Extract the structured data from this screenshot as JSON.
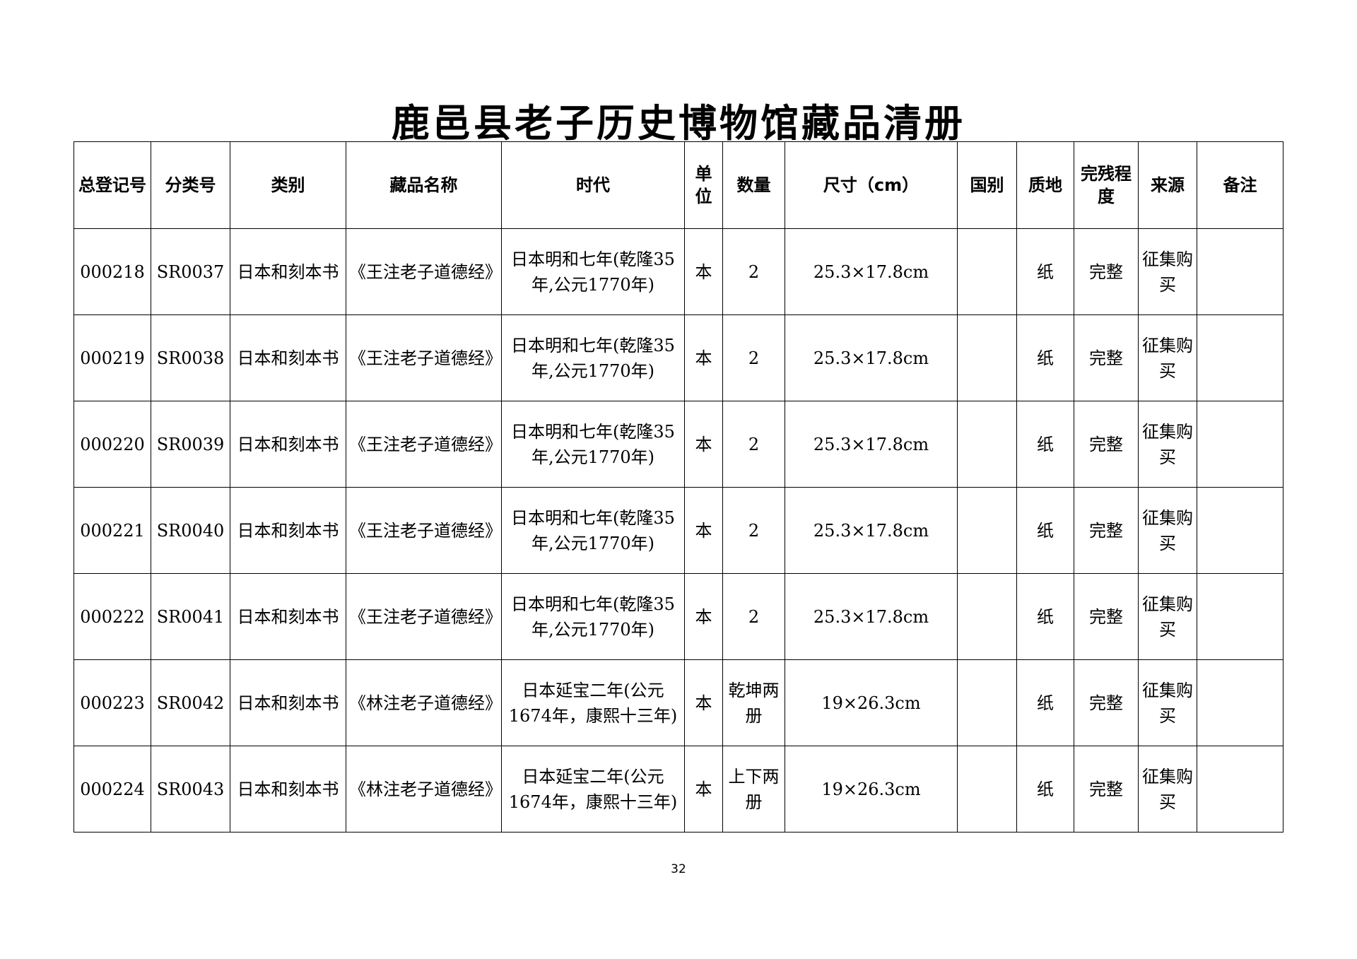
{
  "title": "鹿邑县老子历史博物馆藏品清册",
  "headers": [
    "总登记号",
    "分类号",
    "类别",
    "藏品名称",
    "时代",
    "单位",
    "数量",
    "尺寸（cm）",
    "国别",
    "质地",
    "完残程度",
    "来源",
    "备注"
  ],
  "rows": [
    [
      "000218",
      "SR0037",
      "日本和刻本书",
      "《王注老子道德经》",
      "日本明和七年(乾隆35年,公元1770年)",
      "本",
      "2",
      "25.3×17.8cm",
      "",
      "纸",
      "完整",
      "征集购买",
      ""
    ],
    [
      "000219",
      "SR0038",
      "日本和刻本书",
      "《王注老子道德经》",
      "日本明和七年(乾隆35年,公元1770年)",
      "本",
      "2",
      "25.3×17.8cm",
      "",
      "纸",
      "完整",
      "征集购买",
      ""
    ],
    [
      "000220",
      "SR0039",
      "日本和刻本书",
      "《王注老子道德经》",
      "日本明和七年(乾隆35年,公元1770年)",
      "本",
      "2",
      "25.3×17.8cm",
      "",
      "纸",
      "完整",
      "征集购买",
      ""
    ],
    [
      "000221",
      "SR0040",
      "日本和刻本书",
      "《王注老子道德经》",
      "日本明和七年(乾隆35年,公元1770年)",
      "本",
      "2",
      "25.3×17.8cm",
      "",
      "纸",
      "完整",
      "征集购买",
      ""
    ],
    [
      "000222",
      "SR0041",
      "日本和刻本书",
      "《王注老子道德经》",
      "日本明和七年(乾隆35年,公元1770年)",
      "本",
      "2",
      "25.3×17.8cm",
      "",
      "纸",
      "完整",
      "征集购买",
      ""
    ],
    [
      "000223",
      "SR0042",
      "日本和刻本书",
      "《林注老子道德经》",
      "日本延宝二年(公元1674年，康熙十三年)",
      "本",
      "乾坤两册",
      "19×26.3cm",
      "",
      "纸",
      "完整",
      "征集购买",
      ""
    ],
    [
      "000224",
      "SR0043",
      "日本和刻本书",
      "《林注老子道德经》",
      "日本延宝二年(公元1674年，康熙十三年)",
      "本",
      "上下两册",
      "19×26.3cm",
      "",
      "纸",
      "完整",
      "征集购买",
      ""
    ]
  ],
  "page_number": "32"
}
